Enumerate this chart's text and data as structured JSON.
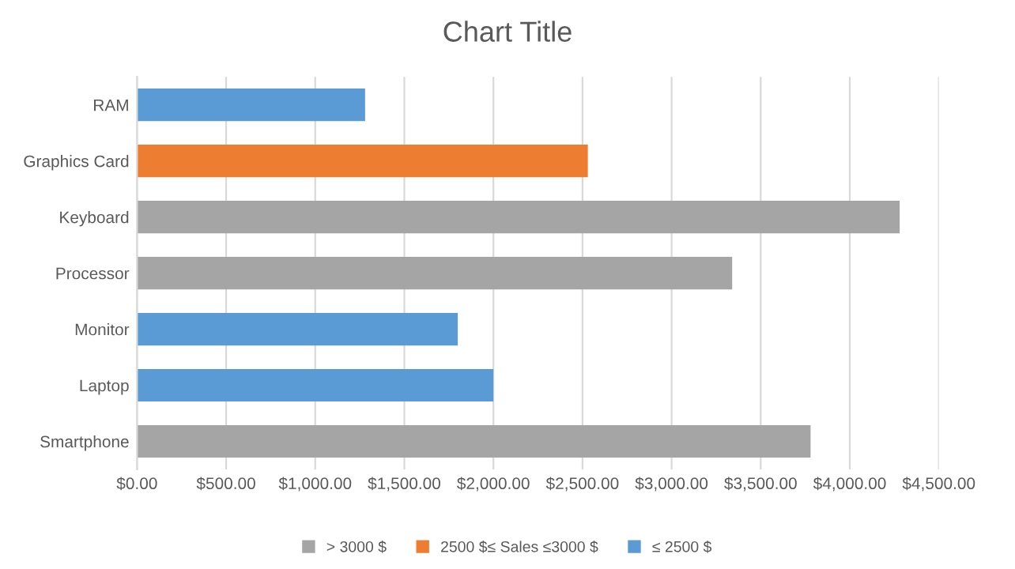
{
  "chart_data": {
    "type": "bar",
    "orientation": "horizontal",
    "title": "Chart Title",
    "categories": [
      "RAM",
      "Graphics Card",
      "Keyboard",
      "Processor",
      "Monitor",
      "Laptop",
      "Smartphone"
    ],
    "series": [
      {
        "name": "> 3000 $",
        "color": "#a5a5a5",
        "values": [
          null,
          null,
          4280,
          3340,
          null,
          null,
          3780
        ]
      },
      {
        "name": "2500 $≤ Sales ≤3000 $",
        "color": "#ed7d31",
        "values": [
          null,
          2530,
          null,
          null,
          null,
          null,
          null
        ]
      },
      {
        "name": "≤ 2500 $",
        "color": "#5b9bd5",
        "values": [
          1280,
          null,
          null,
          null,
          1800,
          2000,
          null
        ]
      }
    ],
    "xlim": [
      0,
      4500
    ],
    "xticks": [
      {
        "value": 0,
        "label": "$0.00"
      },
      {
        "value": 500,
        "label": "$500.00"
      },
      {
        "value": 1000,
        "label": "$1,000.00"
      },
      {
        "value": 1500,
        "label": "$1,500.00"
      },
      {
        "value": 2000,
        "label": "$2,000.00"
      },
      {
        "value": 2500,
        "label": "$2,500.00"
      },
      {
        "value": 3000,
        "label": "$3,000.00"
      },
      {
        "value": 3500,
        "label": "$3,500.00"
      },
      {
        "value": 4000,
        "label": "$4,000.00"
      },
      {
        "value": 4500,
        "label": "$4,500.00"
      }
    ],
    "grid": "x",
    "legend": "bottom"
  }
}
